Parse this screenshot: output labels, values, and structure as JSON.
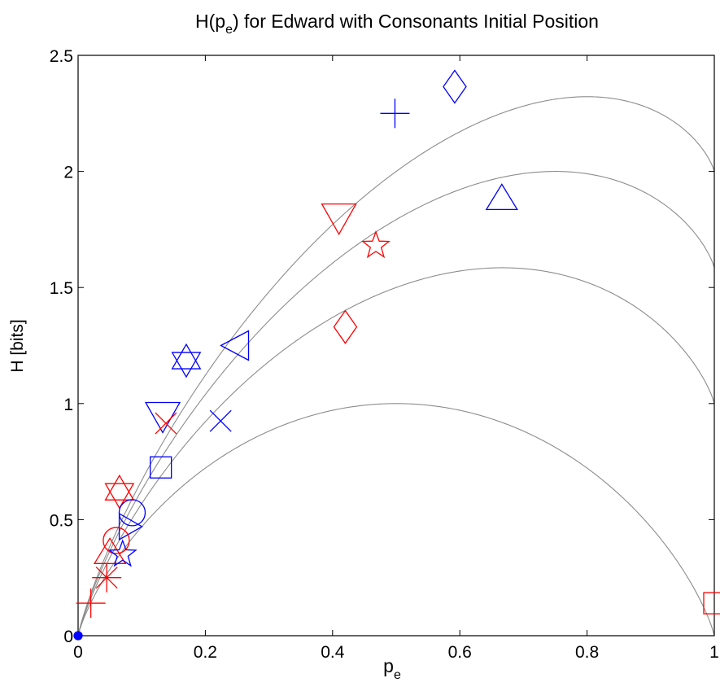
{
  "chart_data": {
    "type": "scatter",
    "title": "H(p_e) for Edward with Consonants Initial Position",
    "title_main": "H(p",
    "title_sub": "e",
    "title_rest": ") for Edward with Consonants Initial Position",
    "xlabel_main": "p",
    "xlabel_sub": "e",
    "ylabel": "H [bits]",
    "xlim": [
      0,
      1
    ],
    "ylim": [
      0,
      2.5
    ],
    "xticks": [
      0,
      0.2,
      0.4,
      0.6,
      0.8,
      1
    ],
    "xtick_labels": [
      "0",
      "0.2",
      "0.4",
      "0.6",
      "0.8",
      "1"
    ],
    "yticks": [
      0,
      0.5,
      1,
      1.5,
      2,
      2.5
    ],
    "ytick_labels": [
      "0",
      "0.5",
      "1",
      "1.5",
      "2",
      "2.5"
    ],
    "grid": false,
    "reference_curves": {
      "description": "H = -p log2 p - (1-p) log2(1-p) + p log2(N-1)",
      "N": [
        2,
        3,
        4,
        5
      ],
      "color": "#8c8c8c"
    },
    "colors": {
      "blue": "#0000ff",
      "red": "#ff0000"
    },
    "points": [
      {
        "marker": "diamond",
        "color": "blue",
        "x": 0.592,
        "y": 2.365
      },
      {
        "marker": "plus",
        "color": "blue",
        "x": 0.498,
        "y": 2.25
      },
      {
        "marker": "triangle-up",
        "color": "blue",
        "x": 0.666,
        "y": 1.885
      },
      {
        "marker": "triangle-down",
        "color": "red",
        "x": 0.41,
        "y": 1.8
      },
      {
        "marker": "pentagram",
        "color": "red",
        "x": 0.468,
        "y": 1.68
      },
      {
        "marker": "diamond",
        "color": "red",
        "x": 0.42,
        "y": 1.33
      },
      {
        "marker": "triangle-left",
        "color": "blue",
        "x": 0.25,
        "y": 1.25
      },
      {
        "marker": "hexagram",
        "color": "blue",
        "x": 0.17,
        "y": 1.185
      },
      {
        "marker": "triangle-down",
        "color": "blue",
        "x": 0.133,
        "y": 0.945
      },
      {
        "marker": "x",
        "color": "red",
        "x": 0.138,
        "y": 0.915
      },
      {
        "marker": "x",
        "color": "blue",
        "x": 0.224,
        "y": 0.925
      },
      {
        "marker": "square",
        "color": "blue",
        "x": 0.13,
        "y": 0.725
      },
      {
        "marker": "hexagram",
        "color": "red",
        "x": 0.065,
        "y": 0.62
      },
      {
        "marker": "circle",
        "color": "blue",
        "x": 0.085,
        "y": 0.53
      },
      {
        "marker": "triangle-right",
        "color": "blue",
        "x": 0.08,
        "y": 0.47
      },
      {
        "marker": "circle",
        "color": "red",
        "x": 0.06,
        "y": 0.41
      },
      {
        "marker": "triangle-up",
        "color": "red",
        "x": 0.05,
        "y": 0.36
      },
      {
        "marker": "pentagram",
        "color": "blue",
        "x": 0.07,
        "y": 0.35
      },
      {
        "marker": "asterisk",
        "color": "red",
        "x": 0.045,
        "y": 0.25
      },
      {
        "marker": "plus",
        "color": "red",
        "x": 0.02,
        "y": 0.14
      },
      {
        "marker": "filled-circle",
        "color": "blue",
        "x": 0.0,
        "y": 0.0
      },
      {
        "marker": "square",
        "color": "red",
        "x": 1.0,
        "y": 0.14
      }
    ]
  }
}
